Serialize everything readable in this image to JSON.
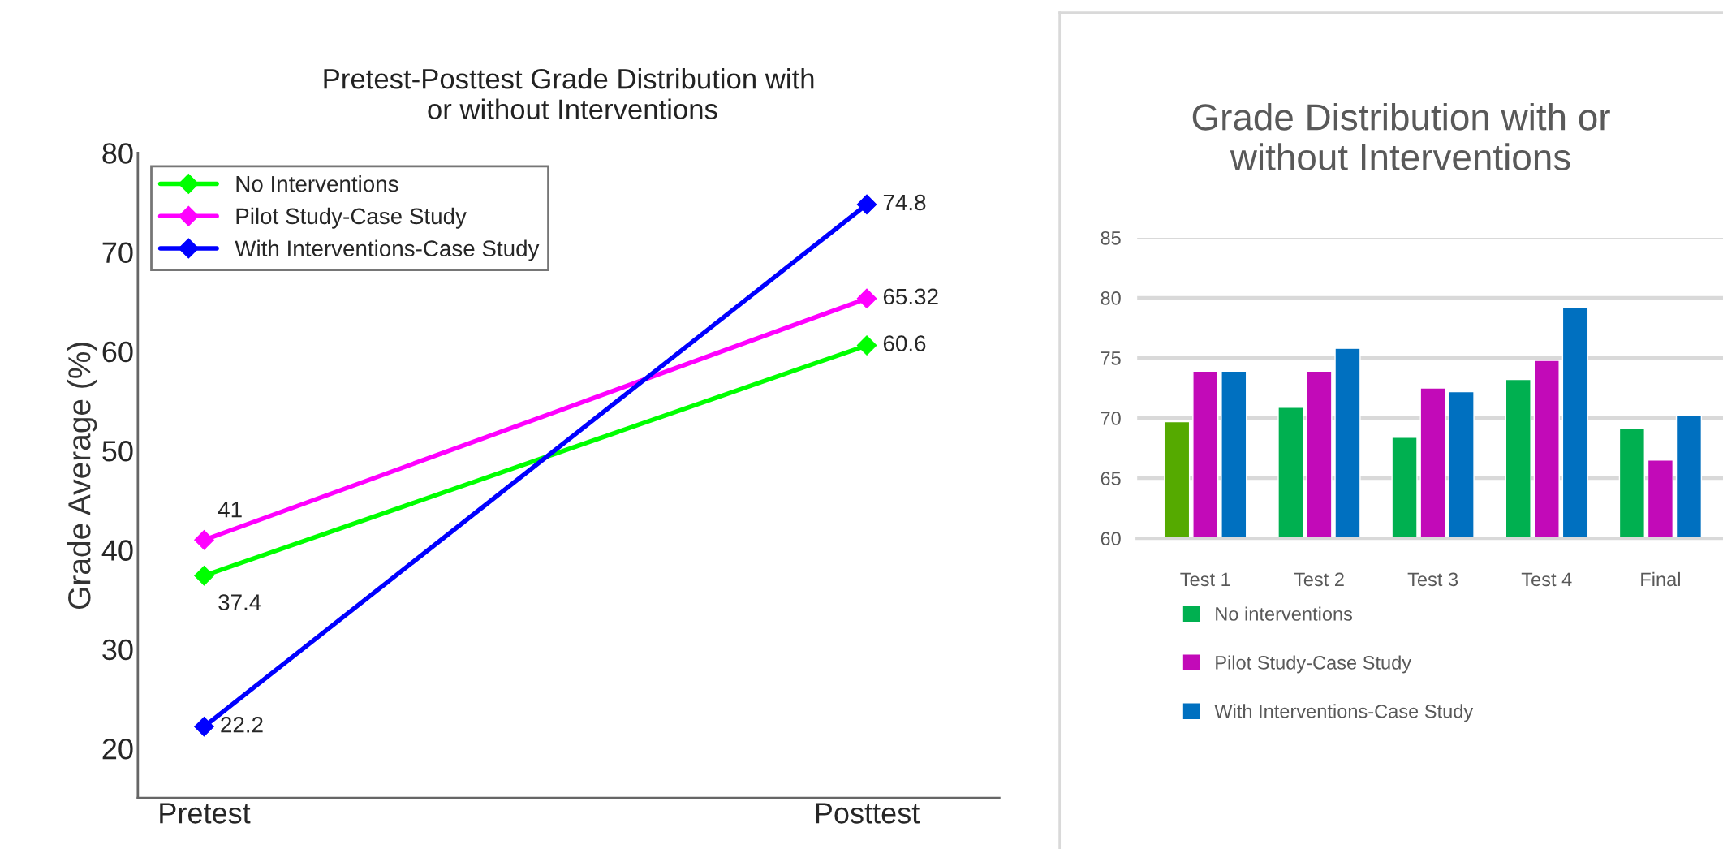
{
  "chart_data": [
    {
      "type": "line",
      "title": "Pretest-Posttest Grade Distribution with\n or without Interventions",
      "ylabel": "Grade Average (%)",
      "categories": [
        "Pretest",
        "Posttest"
      ],
      "ylim": [
        15,
        80
      ],
      "yticks": [
        20,
        30,
        40,
        50,
        60,
        70,
        80
      ],
      "marker": "diamond",
      "data_labels": true,
      "legend": "top left",
      "grid": false,
      "series": [
        {
          "name": "No Interventions",
          "color": "#00ff00",
          "values": [
            37.4,
            60.6
          ]
        },
        {
          "name": "Pilot Study-Case Study",
          "color": "#ff00ff",
          "values": [
            41,
            65.32
          ]
        },
        {
          "name": "With Interventions-Case Study",
          "color": "#0000ff",
          "values": [
            22.2,
            74.8
          ]
        }
      ]
    },
    {
      "type": "bar",
      "title": "Grade Distribution with or\nwithout Interventions",
      "categories": [
        "Test 1",
        "Test 2",
        "Test 3",
        "Test 4",
        "Final"
      ],
      "ylim": [
        60,
        85
      ],
      "yticks": [
        60,
        65,
        70,
        75,
        80,
        85
      ],
      "grid": "y",
      "legend": "bottom",
      "series": [
        {
          "name": "No interventions",
          "color": "#00b050",
          "colors": [
            "#55aa00",
            "#00b050",
            "#00b050",
            "#00b050",
            "#00b050"
          ],
          "values": [
            69.7,
            70.9,
            68.4,
            73.2,
            69.1
          ]
        },
        {
          "name": "Pilot Study-Case Study",
          "color": "#c20ab8",
          "values": [
            73.9,
            73.9,
            72.5,
            74.8,
            66.5
          ]
        },
        {
          "name": "With Interventions-Case Study",
          "color": "#0070c0",
          "values": [
            73.9,
            75.8,
            72.2,
            79.2,
            70.2
          ]
        }
      ]
    }
  ]
}
